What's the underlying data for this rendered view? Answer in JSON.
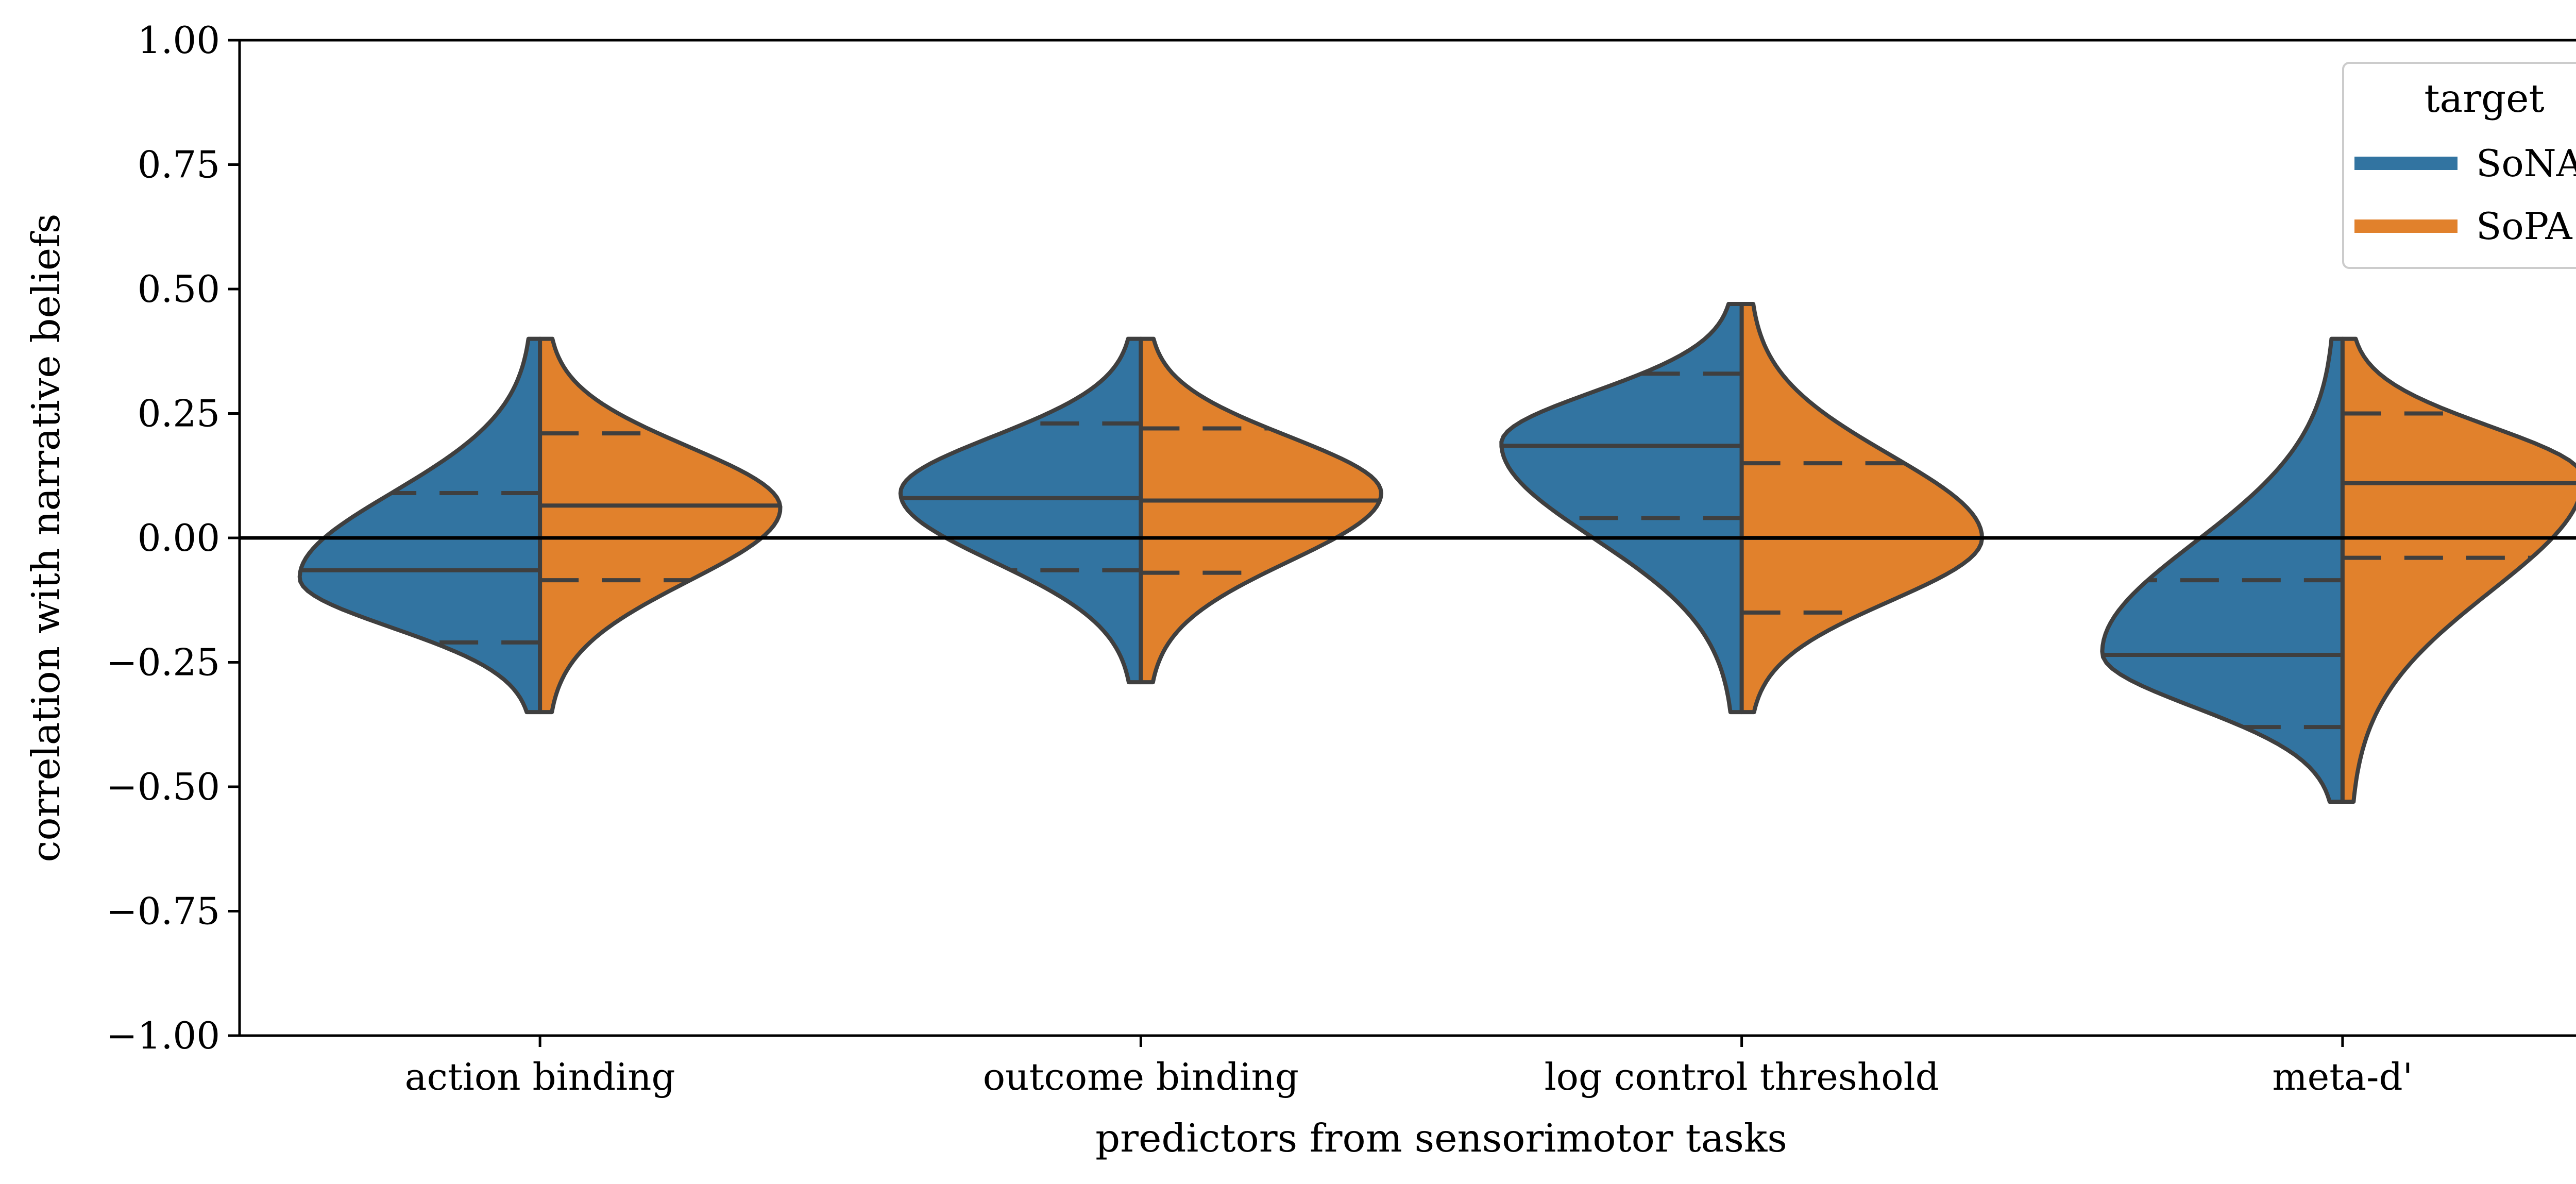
{
  "chart_data": {
    "type": "violin",
    "split": true,
    "xlabel": "predictors from sensorimotor tasks",
    "ylabel": "correlation with narrative beliefs",
    "ylim": [
      -1.0,
      1.0
    ],
    "yticks": [
      -1.0,
      -0.75,
      -0.5,
      -0.25,
      0.0,
      0.25,
      0.5,
      0.75,
      1.0
    ],
    "ytick_labels": [
      "−1.00",
      "−0.75",
      "−0.50",
      "−0.25",
      "0.00",
      "0.25",
      "0.50",
      "0.75",
      "1.00"
    ],
    "categories": [
      "action binding",
      "outcome binding",
      "log control threshold",
      "meta-d'"
    ],
    "reference_line_y": 0.0,
    "legend": {
      "title": "target",
      "position": "top-right"
    },
    "series": [
      {
        "name": "SoNA",
        "color": "#3274a1",
        "violins": [
          {
            "min": -0.35,
            "q1": -0.21,
            "median": -0.065,
            "q3": 0.09,
            "max": 0.4,
            "mode": -0.08
          },
          {
            "min": -0.29,
            "q1": -0.065,
            "median": 0.08,
            "q3": 0.23,
            "max": 0.4,
            "mode": 0.09
          },
          {
            "min": -0.35,
            "q1": 0.04,
            "median": 0.185,
            "q3": 0.33,
            "max": 0.47,
            "mode": 0.19
          },
          {
            "min": -0.53,
            "q1": -0.38,
            "median": -0.235,
            "q3": -0.085,
            "max": 0.4,
            "mode": -0.23
          }
        ]
      },
      {
        "name": "SoPA",
        "color": "#e1812c",
        "violins": [
          {
            "min": -0.35,
            "q1": -0.085,
            "median": 0.065,
            "q3": 0.21,
            "max": 0.4,
            "mode": 0.06
          },
          {
            "min": -0.29,
            "q1": -0.07,
            "median": 0.075,
            "q3": 0.22,
            "max": 0.4,
            "mode": 0.09
          },
          {
            "min": -0.35,
            "q1": -0.15,
            "median": 0.0,
            "q3": 0.15,
            "max": 0.47,
            "mode": 0.0
          },
          {
            "min": -0.53,
            "q1": -0.04,
            "median": 0.11,
            "q3": 0.25,
            "max": 0.4,
            "mode": 0.12
          }
        ]
      }
    ]
  }
}
